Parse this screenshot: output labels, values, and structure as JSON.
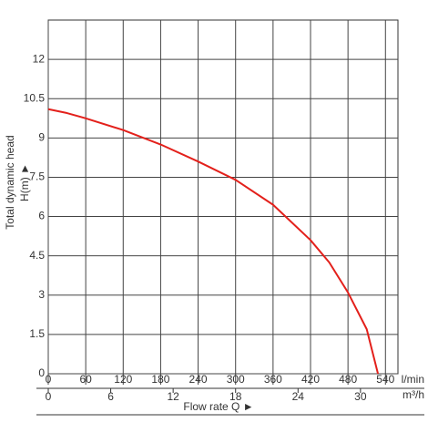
{
  "chart_data": {
    "type": "line",
    "ylabel": "Total dynamic head",
    "yunit": "H(m) ►",
    "xlabel": "Flow rate Q ►",
    "xunit": "l/min",
    "x2unit": "m³/h",
    "x": [
      0,
      30,
      60,
      120,
      180,
      240,
      300,
      360,
      420,
      450,
      480,
      510,
      528
    ],
    "values": [
      10.1,
      9.95,
      9.75,
      9.3,
      8.75,
      8.1,
      7.4,
      6.45,
      5.1,
      4.25,
      3.1,
      1.7,
      0
    ],
    "color": "#e3201b",
    "xlim": [
      0,
      560
    ],
    "xticks": [
      0,
      60,
      120,
      180,
      240,
      300,
      360,
      420,
      480,
      540
    ],
    "x2lim": [
      0,
      33.6
    ],
    "x2ticks": [
      0,
      6,
      12,
      18,
      24,
      30
    ],
    "ylim": [
      0,
      13.5
    ],
    "yticks": [
      0,
      1.5,
      3,
      4.5,
      6,
      7.5,
      9,
      10.5,
      12
    ],
    "grid": true
  }
}
